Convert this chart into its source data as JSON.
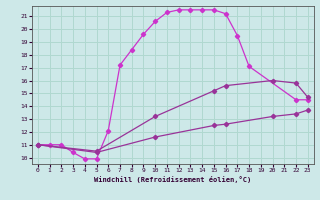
{
  "xlabel": "Windchill (Refroidissement éolien,°C)",
  "bg_color": "#cde8e8",
  "grid_color": "#b0d8d0",
  "line_color1": "#cc33cc",
  "line_color2": "#993399",
  "line_color3": "#993399",
  "xlim": [
    -0.5,
    23.5
  ],
  "ylim": [
    9.5,
    21.8
  ],
  "xticks": [
    0,
    1,
    2,
    3,
    4,
    5,
    6,
    7,
    8,
    9,
    10,
    11,
    12,
    13,
    14,
    15,
    16,
    17,
    18,
    19,
    20,
    21,
    22,
    23
  ],
  "yticks": [
    10,
    11,
    12,
    13,
    14,
    15,
    16,
    17,
    18,
    19,
    20,
    21
  ],
  "curve1_x": [
    0,
    1,
    2,
    3,
    4,
    5,
    6,
    7,
    8,
    9,
    10,
    11,
    12,
    13,
    14,
    15,
    16,
    17,
    18,
    22,
    23
  ],
  "curve1_y": [
    11.0,
    11.0,
    11.0,
    10.4,
    9.9,
    9.9,
    12.1,
    17.2,
    18.4,
    19.6,
    20.6,
    21.3,
    21.5,
    21.5,
    21.5,
    21.5,
    21.2,
    19.5,
    17.1,
    14.5,
    14.5
  ],
  "curve2_x": [
    0,
    5,
    10,
    15,
    16,
    20,
    22,
    23
  ],
  "curve2_y": [
    11.0,
    10.5,
    13.2,
    15.2,
    15.6,
    16.0,
    15.8,
    14.7
  ],
  "curve3_x": [
    0,
    5,
    10,
    15,
    16,
    20,
    22,
    23
  ],
  "curve3_y": [
    11.0,
    10.4,
    11.6,
    12.5,
    12.6,
    13.2,
    13.4,
    13.7
  ]
}
